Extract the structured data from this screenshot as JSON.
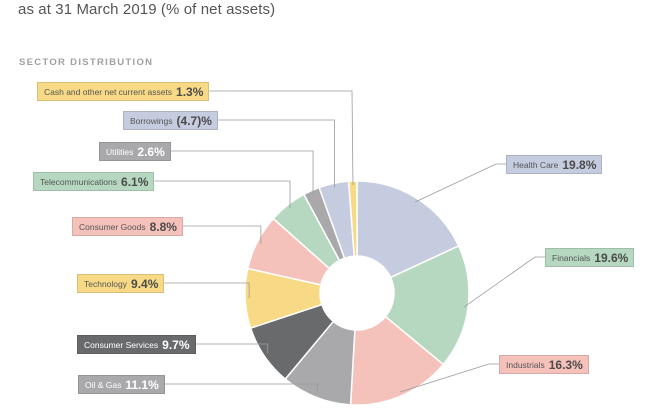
{
  "header": {
    "subtitle": "as at 31 March 2019 (% of net assets)"
  },
  "section": {
    "title": "SECTOR DISTRIBUTION"
  },
  "chart_data": {
    "type": "pie",
    "style": "donut",
    "title": "SECTOR DISTRIBUTION",
    "subtitle": "as at 31 March 2019 (% of net assets)",
    "unit": "% of net assets",
    "slices": [
      {
        "name": "Health Care",
        "value": 19.8,
        "label": "19.8%",
        "color": "#c5ccdf"
      },
      {
        "name": "Financials",
        "value": 19.6,
        "label": "19.6%",
        "color": "#b6d8c0"
      },
      {
        "name": "Industrials",
        "value": 16.3,
        "label": "16.3%",
        "color": "#f5c2bb"
      },
      {
        "name": "Oil & Gas",
        "value": 11.1,
        "label": "11.1%",
        "color": "#a9a9ab"
      },
      {
        "name": "Consumer Services",
        "value": 9.7,
        "label": "9.7%",
        "color": "#686a6c"
      },
      {
        "name": "Technology",
        "value": 9.4,
        "label": "9.4%",
        "color": "#f8da86"
      },
      {
        "name": "Consumer Goods",
        "value": 8.8,
        "label": "8.8%",
        "color": "#f5c2bb"
      },
      {
        "name": "Telecommunications",
        "value": 6.1,
        "label": "6.1%",
        "color": "#b6d8c0"
      },
      {
        "name": "Utilities",
        "value": 2.6,
        "label": "2.6%",
        "color": "#a9a9ab"
      },
      {
        "name": "Borrowings",
        "value": -4.7,
        "label": "(4.7)%",
        "color": "#c5ccdf"
      },
      {
        "name": "Cash and other net current assets",
        "value": 1.3,
        "label": "1.3%",
        "color": "#f8da86"
      }
    ]
  }
}
